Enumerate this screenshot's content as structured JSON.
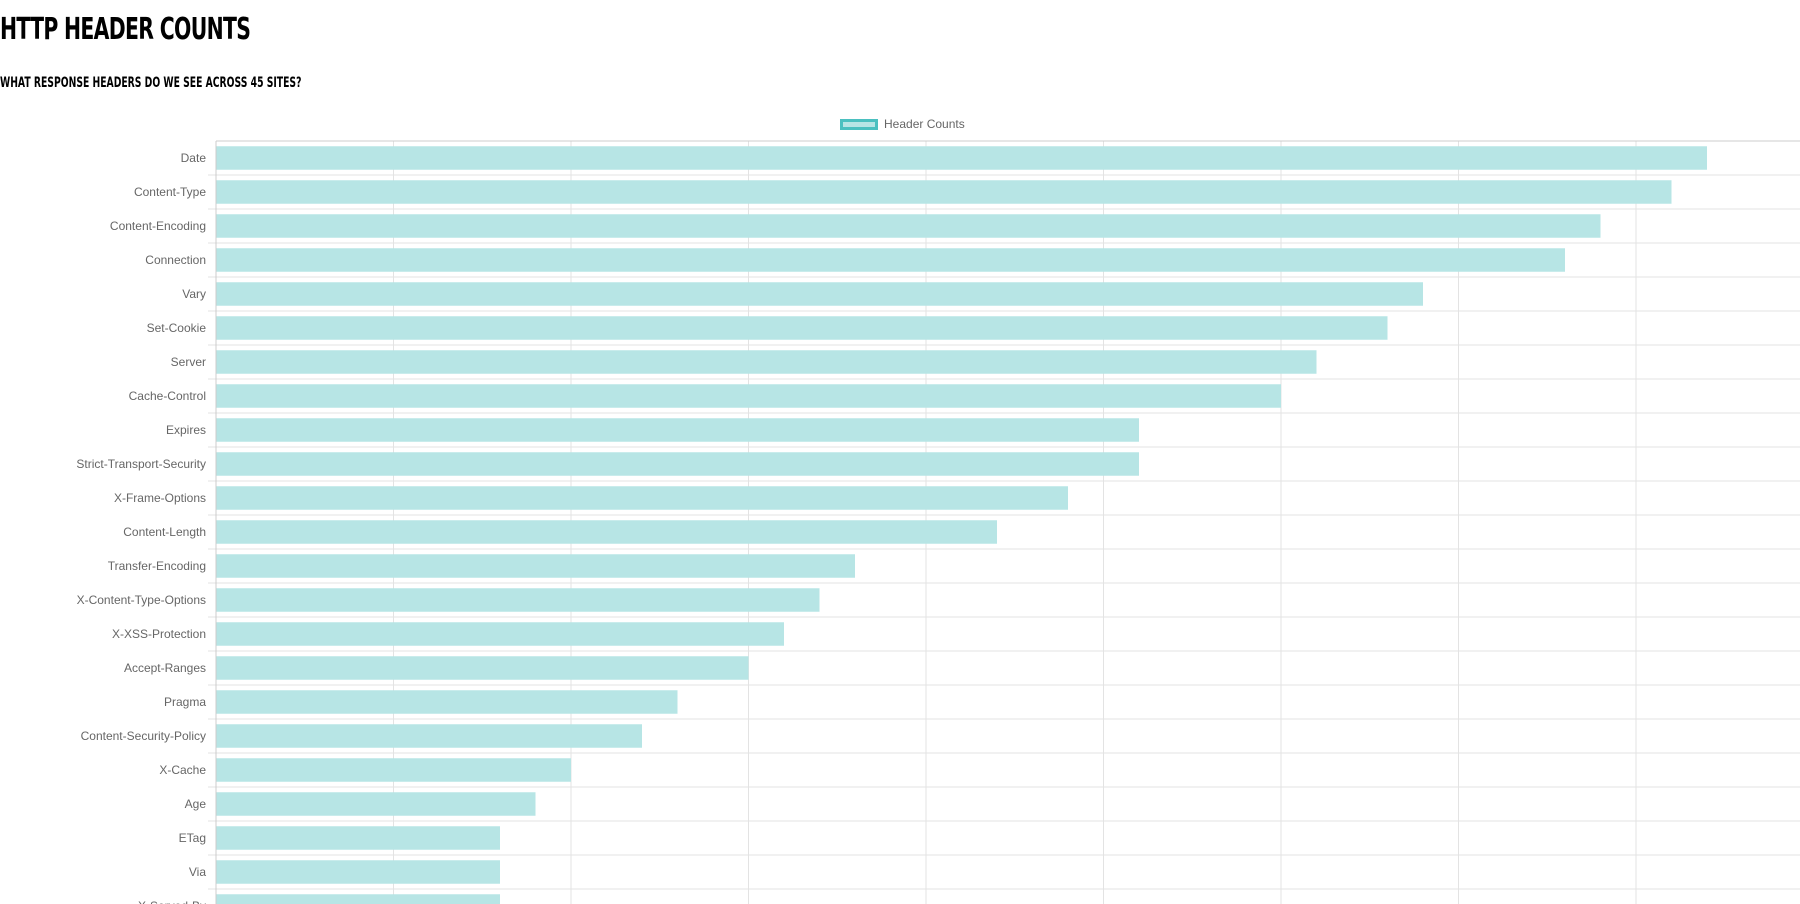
{
  "page": {
    "title": "HTTP HEADER COUNTS",
    "subtitle": "WHAT RESPONSE HEADERS DO WE SEE ACROSS 45 SITES?"
  },
  "colors": {
    "bar_fill": "#b7e5e5",
    "bar_border": "#4bc0c0",
    "grid": "#e3e3e3",
    "axis": "#cccccc",
    "tick_label": "#666666"
  },
  "chart_data": {
    "type": "bar",
    "orientation": "horizontal",
    "title": "",
    "xlabel": "",
    "ylabel": "",
    "legend": [
      "Header Counts"
    ],
    "legend_position": "top-center",
    "grid": true,
    "xlim": [
      0,
      45
    ],
    "categories": [
      "Date",
      "Content-Type",
      "Content-Encoding",
      "Connection",
      "Vary",
      "Set-Cookie",
      "Server",
      "Cache-Control",
      "Expires",
      "Strict-Transport-Security",
      "X-Frame-Options",
      "Content-Length",
      "Transfer-Encoding",
      "X-Content-Type-Options",
      "X-XSS-Protection",
      "Accept-Ranges",
      "Pragma",
      "Content-Security-Policy",
      "X-Cache",
      "Age",
      "ETag",
      "Via",
      "X-Served-By"
    ],
    "series": [
      {
        "name": "Header Counts",
        "values": [
          42,
          41,
          39,
          38,
          34,
          33,
          31,
          30,
          26,
          26,
          24,
          22,
          18,
          17,
          16,
          15,
          13,
          12,
          10,
          9,
          8,
          8,
          8
        ]
      }
    ]
  }
}
